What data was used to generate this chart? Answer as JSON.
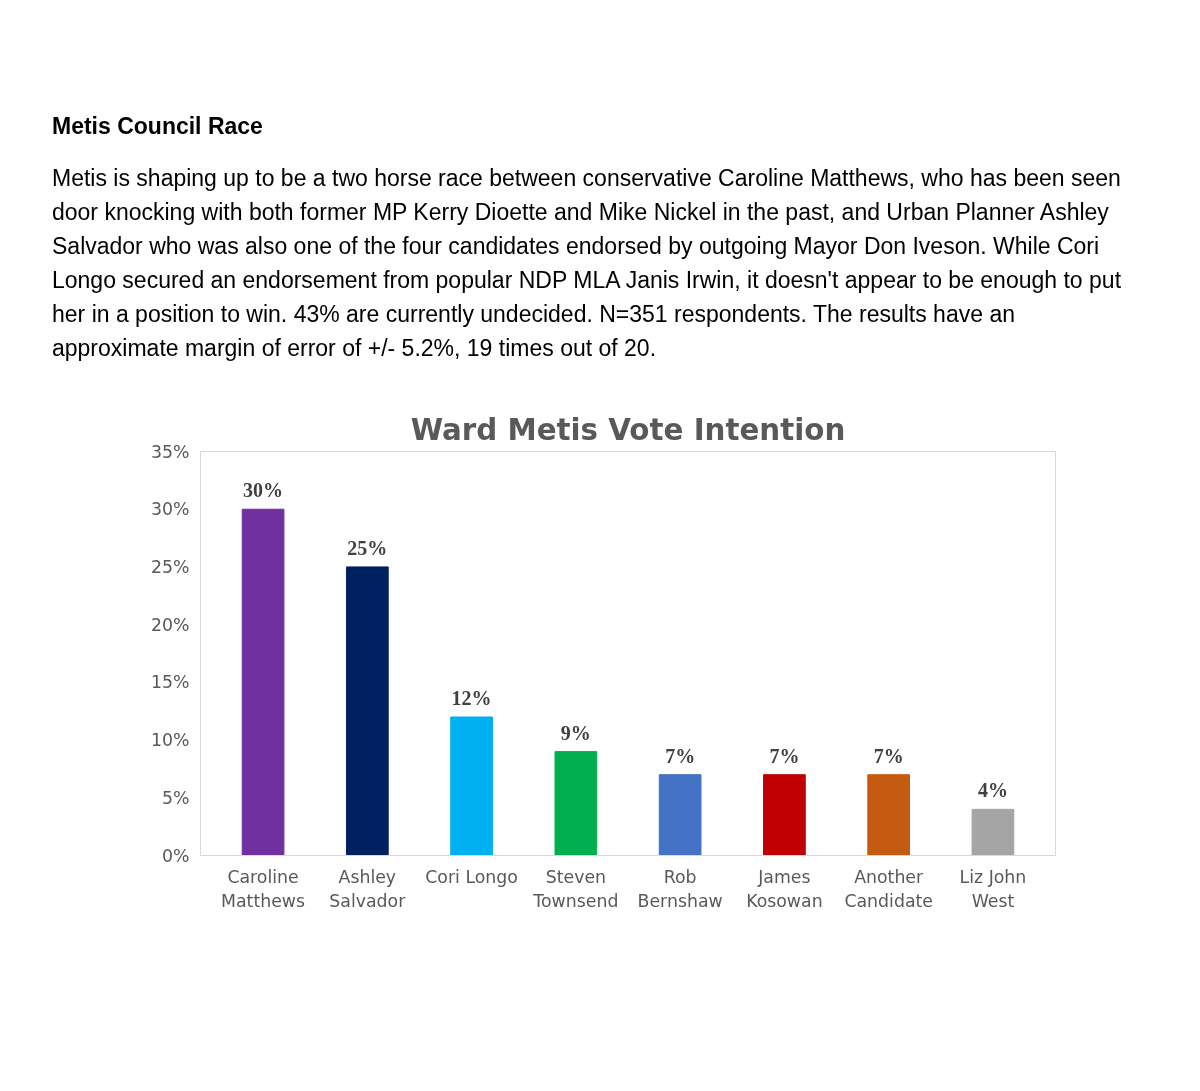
{
  "chart_data": {
    "type": "bar",
    "title": "Ward Metis Vote Intention",
    "annotations": [
      "Metis Council Race",
      "Metis is shaping up to be a two horse race between conservative Caroline Matthews, who has been seen door knocking with both former MP Kerry Dioette and Mike Nickel in the past, and Urban Planner Ashley Salvador who was also one of the four candidates endorsed by outgoing Mayor Don Iveson. While Cori Longo secured an endorsement from popular NDP MLA Janis Irwin, it doesn't appear to be enough to put her in a position to win. 43% are currently undecided. N=351 respondents. The results have an approximate margin of error of +/- 5.2%, 19 times out of 20."
    ],
    "categories": [
      "Caroline\nMatthews",
      "Ashley\nSalvador",
      "Cori Longo",
      "Steven\nTownsend",
      "Rob\nBernshaw",
      "James\nKosowan",
      "Another\nCandidate",
      "Liz John\nWest"
    ],
    "values": [
      30,
      25,
      12,
      9,
      7,
      7,
      7,
      4
    ],
    "colors": [
      "#7030a0",
      "#002060",
      "#00b0f0",
      "#00b050",
      "#4472c4",
      "#c00000",
      "#c55a11",
      "#a5a5a5"
    ],
    "value_labels": [
      "30%",
      "25%",
      "12%",
      "9%",
      "7%",
      "7%",
      "7%",
      "4%"
    ],
    "ylim": [
      0,
      35
    ],
    "yticks": [
      {
        "value": 0,
        "label": "0%"
      },
      {
        "value": 5,
        "label": "5%"
      },
      {
        "value": 10,
        "label": "10%"
      },
      {
        "value": 15,
        "label": "15%"
      },
      {
        "value": 20,
        "label": "20%"
      },
      {
        "value": 25,
        "label": "25%"
      },
      {
        "value": 30,
        "label": "30%"
      },
      {
        "value": 35,
        "label": "35%"
      }
    ]
  }
}
